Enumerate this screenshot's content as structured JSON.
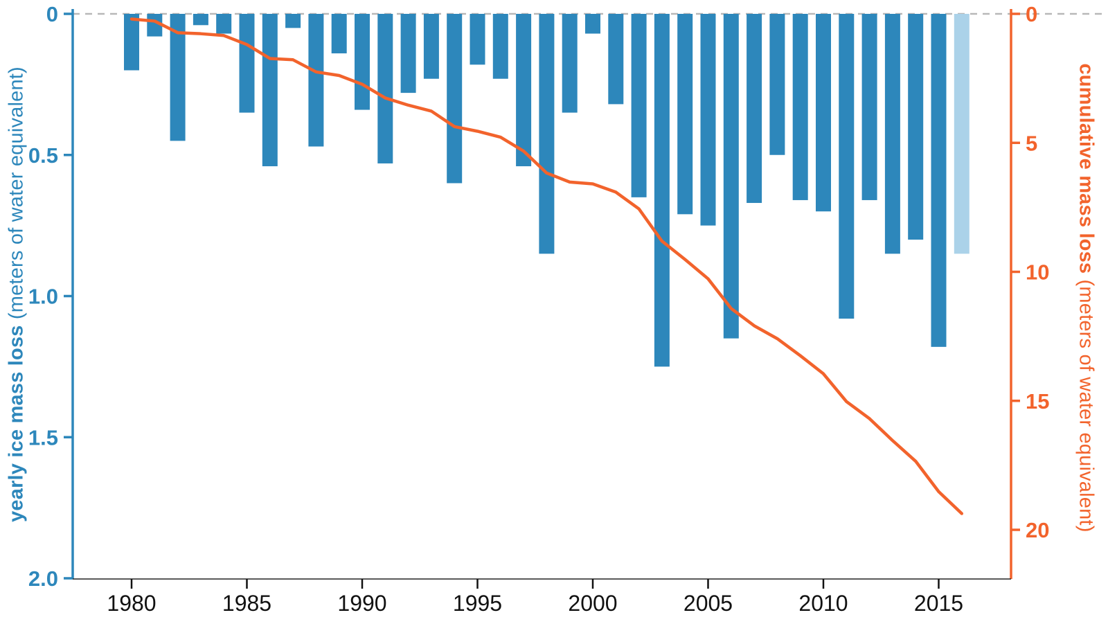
{
  "chart_data": {
    "type": "bar",
    "title": "",
    "x": [
      1980,
      1981,
      1982,
      1983,
      1984,
      1985,
      1986,
      1987,
      1988,
      1989,
      1990,
      1991,
      1992,
      1993,
      1994,
      1995,
      1996,
      1997,
      1998,
      1999,
      2000,
      2001,
      2002,
      2003,
      2004,
      2005,
      2006,
      2007,
      2008,
      2009,
      2010,
      2011,
      2012,
      2013,
      2014,
      2015,
      2016
    ],
    "series": [
      {
        "name": "yearly ice mass loss",
        "type": "bar",
        "yaxis": "left",
        "preliminary_final_value": true,
        "values": [
          0.2,
          0.08,
          0.45,
          0.04,
          0.07,
          0.35,
          0.54,
          0.05,
          0.47,
          0.14,
          0.34,
          0.53,
          0.28,
          0.23,
          0.6,
          0.18,
          0.23,
          0.54,
          0.85,
          0.35,
          0.07,
          0.32,
          0.65,
          1.25,
          0.71,
          0.75,
          1.15,
          0.67,
          0.5,
          0.66,
          0.7,
          1.08,
          0.66,
          0.85,
          0.8,
          1.18,
          0.85
        ]
      },
      {
        "name": "cumulative mass loss",
        "type": "line",
        "yaxis": "right",
        "values": [
          0.2,
          0.28,
          0.73,
          0.77,
          0.84,
          1.19,
          1.73,
          1.78,
          2.25,
          2.39,
          2.73,
          3.26,
          3.54,
          3.77,
          4.37,
          4.55,
          4.78,
          5.32,
          6.17,
          6.52,
          6.59,
          6.91,
          7.56,
          8.81,
          9.52,
          10.27,
          11.42,
          12.09,
          12.59,
          13.25,
          13.95,
          15.03,
          15.69,
          16.54,
          17.34,
          18.52,
          19.37
        ]
      }
    ],
    "left_axis": {
      "title_bold": "yearly ice mass loss",
      "title_normal": " (meters of water equivalent)",
      "ticks": [
        0,
        0.5,
        1.0,
        1.5,
        2.0
      ],
      "tick_labels": [
        "0",
        "0.5",
        "1.0",
        "1.5",
        "2.0"
      ],
      "range": [
        0,
        2.0
      ],
      "inverted": true,
      "color": "#2d87bb"
    },
    "right_axis": {
      "title_bold": "cumulative mass loss",
      "title_normal": " (meters of water equivalent)",
      "ticks": [
        0,
        5,
        10,
        15,
        20
      ],
      "tick_labels": [
        "0",
        "5",
        "10",
        "15",
        "20"
      ],
      "range": [
        0,
        20
      ],
      "inverted": true,
      "color": "#f2632c"
    },
    "x_axis": {
      "ticks": [
        1980,
        1985,
        1990,
        1995,
        2000,
        2005,
        2010,
        2015
      ],
      "tick_labels": [
        "1980",
        "1985",
        "1990",
        "1995",
        "2000",
        "2005",
        "2010",
        "2015"
      ],
      "color": "#111111"
    },
    "colors": {
      "bar": "#2d87bb",
      "bar_preliminary": "#abd2e9",
      "line": "#f2632c",
      "zero_line": "#b8b8b8",
      "bottom_axis": "#222222",
      "background": "#ffffff"
    },
    "zero_line_dashed": true,
    "legend_position": "none",
    "grid": false
  }
}
